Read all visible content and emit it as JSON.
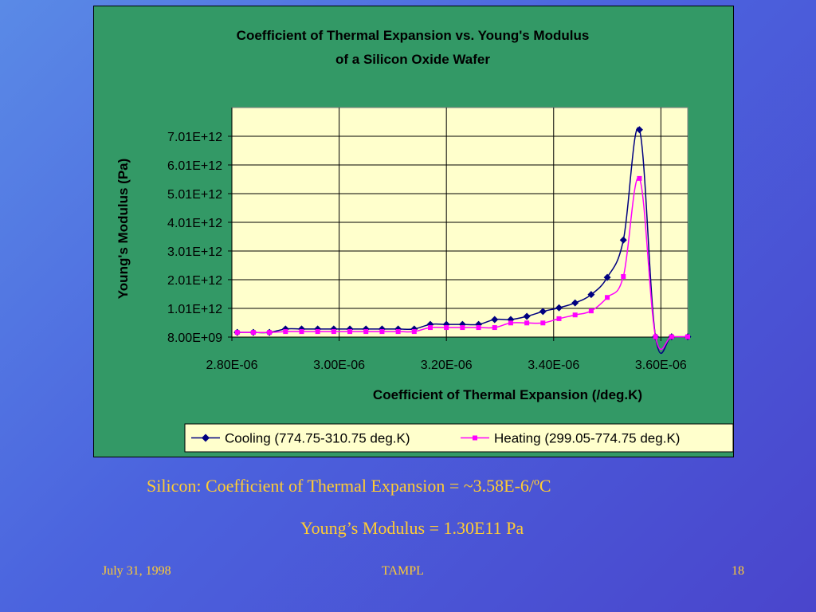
{
  "chart_data": {
    "type": "line",
    "title": "Coefficient of Thermal Expansion vs. Young's Modulus",
    "subtitle": "of a Silicon Oxide Wafer",
    "xlabel": "Coefficient of Thermal Expansion (/deg.K)",
    "ylabel": "Young's Modulus (Pa)",
    "xlim": [
      2.8e-06,
      3.65e-06
    ],
    "ylim": [
      8000000000.0,
      7010000000000.0
    ],
    "x_ticks": [
      "2.80E-06",
      "3.00E-06",
      "3.20E-06",
      "3.40E-06",
      "3.60E-06"
    ],
    "y_ticks": [
      "8.00E+09",
      "1.01E+12",
      "2.01E+12",
      "3.01E+12",
      "4.01E+12",
      "5.01E+12",
      "6.01E+12",
      "7.01E+12"
    ],
    "grid": true,
    "plot_background": "#ffffcc",
    "chart_background": "#339966",
    "legend_position": "bottom",
    "series": [
      {
        "name": "Cooling (774.75-310.75 deg.K)",
        "color": "#000080",
        "marker": "diamond",
        "points": [
          [
            2.81e-06,
            170000000000.0
          ],
          [
            2.84e-06,
            170000000000.0
          ],
          [
            2.87e-06,
            170000000000.0
          ],
          [
            2.9e-06,
            290000000000.0
          ],
          [
            2.93e-06,
            290000000000.0
          ],
          [
            2.96e-06,
            290000000000.0
          ],
          [
            2.99e-06,
            290000000000.0
          ],
          [
            3.02e-06,
            290000000000.0
          ],
          [
            3.05e-06,
            290000000000.0
          ],
          [
            3.08e-06,
            290000000000.0
          ],
          [
            3.11e-06,
            290000000000.0
          ],
          [
            3.14e-06,
            290000000000.0
          ],
          [
            3.17e-06,
            450000000000.0
          ],
          [
            3.2e-06,
            450000000000.0
          ],
          [
            3.23e-06,
            450000000000.0
          ],
          [
            3.26e-06,
            450000000000.0
          ],
          [
            3.29e-06,
            620000000000.0
          ],
          [
            3.32e-06,
            620000000000.0
          ],
          [
            3.35e-06,
            730000000000.0
          ],
          [
            3.38e-06,
            900000000000.0
          ],
          [
            3.41e-06,
            1030000000000.0
          ],
          [
            3.44e-06,
            1200000000000.0
          ],
          [
            3.47e-06,
            1490000000000.0
          ],
          [
            3.5e-06,
            2090000000000.0
          ],
          [
            3.53e-06,
            3390000000000.0
          ],
          [
            3.56e-06,
            7240000000000.0
          ],
          [
            3.59e-06,
            20000000000.0
          ],
          [
            3.62e-06,
            20000000000.0
          ],
          [
            3.65e-06,
            20000000000.0
          ]
        ]
      },
      {
        "name": "Heating (299.05-774.75 deg.K)",
        "color": "#ff00ff",
        "marker": "square",
        "points": [
          [
            2.81e-06,
            170000000000.0
          ],
          [
            2.84e-06,
            170000000000.0
          ],
          [
            2.87e-06,
            170000000000.0
          ],
          [
            2.9e-06,
            200000000000.0
          ],
          [
            2.93e-06,
            200000000000.0
          ],
          [
            2.96e-06,
            200000000000.0
          ],
          [
            2.99e-06,
            200000000000.0
          ],
          [
            3.02e-06,
            200000000000.0
          ],
          [
            3.05e-06,
            200000000000.0
          ],
          [
            3.08e-06,
            200000000000.0
          ],
          [
            3.11e-06,
            200000000000.0
          ],
          [
            3.14e-06,
            200000000000.0
          ],
          [
            3.17e-06,
            340000000000.0
          ],
          [
            3.2e-06,
            340000000000.0
          ],
          [
            3.23e-06,
            340000000000.0
          ],
          [
            3.26e-06,
            340000000000.0
          ],
          [
            3.29e-06,
            340000000000.0
          ],
          [
            3.32e-06,
            500000000000.0
          ],
          [
            3.35e-06,
            500000000000.0
          ],
          [
            3.38e-06,
            500000000000.0
          ],
          [
            3.41e-06,
            650000000000.0
          ],
          [
            3.44e-06,
            780000000000.0
          ],
          [
            3.47e-06,
            920000000000.0
          ],
          [
            3.5e-06,
            1390000000000.0
          ],
          [
            3.53e-06,
            2120000000000.0
          ],
          [
            3.56e-06,
            5540000000000.0
          ],
          [
            3.59e-06,
            20000000000.0
          ],
          [
            3.62e-06,
            20000000000.0
          ],
          [
            3.65e-06,
            20000000000.0
          ]
        ]
      }
    ]
  },
  "captions": {
    "line1": "Silicon: Coefficient of Thermal Expansion = ~3.58E-6/ºC",
    "line2": "Young’s Modulus = 1.30E11 Pa"
  },
  "footer": {
    "date": "July 31, 1998",
    "center": "TAMPL",
    "page": "18"
  },
  "colors": {
    "caption_text": "#ffcc33",
    "slide_background": "#4b5fdc"
  }
}
